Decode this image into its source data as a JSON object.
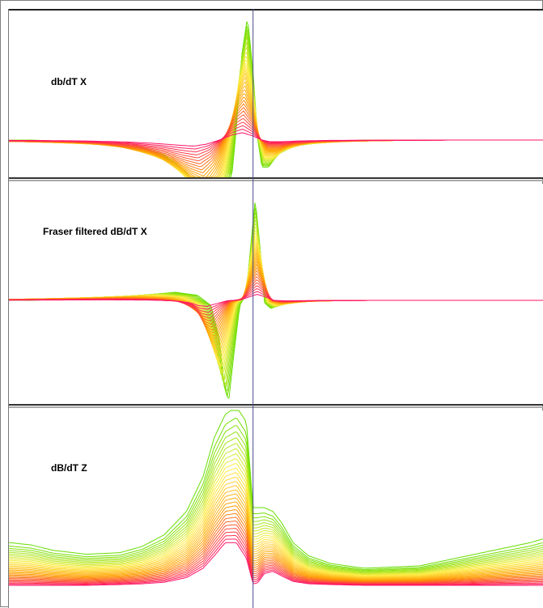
{
  "chart_data": [
    {
      "type": "line",
      "title": "db/dT X",
      "x": [
        -200,
        -150,
        -100,
        -80,
        -60,
        -45,
        -35,
        -28,
        -22,
        -16,
        -10,
        -5,
        0,
        4,
        8,
        14,
        22,
        35,
        60,
        100,
        150,
        220,
        260
      ],
      "base_series": [
        0,
        -0.02,
        -0.06,
        -0.12,
        -0.26,
        -0.48,
        -0.7,
        -0.82,
        -0.55,
        0.0,
        0.7,
        1.0,
        0.55,
        0.02,
        -0.22,
        -0.22,
        -0.12,
        -0.05,
        -0.02,
        0,
        0,
        0,
        0
      ],
      "curve_count": 30,
      "gradient": [
        "#66dd00",
        "#ffee44",
        "#ff9900",
        "#ff1166"
      ],
      "cursor_x": 0
    },
    {
      "type": "line",
      "title": "Fraser filtered dB/dT X",
      "x": [
        -200,
        -150,
        -100,
        -70,
        -50,
        -38,
        -30,
        -26,
        -22,
        -18,
        -12,
        -6,
        -2,
        2,
        6,
        10,
        16,
        24,
        35,
        60,
        100,
        150,
        220,
        260
      ],
      "base_series": [
        0,
        0.02,
        0.05,
        0.08,
        0.05,
        -0.05,
        -0.4,
        -0.85,
        -1.0,
        -0.6,
        -0.05,
        0.06,
        0.55,
        1.0,
        0.55,
        -0.02,
        -0.08,
        -0.05,
        -0.02,
        0,
        0,
        0,
        0,
        0
      ],
      "curve_count": 30,
      "gradient": [
        "#66dd00",
        "#ffee44",
        "#ff9900",
        "#ff1166"
      ],
      "cursor_x": 0
    },
    {
      "type": "line",
      "title": "dB/dT Z",
      "x": [
        -220,
        -200,
        -180,
        -150,
        -120,
        -100,
        -80,
        -60,
        -45,
        -35,
        -25,
        -15,
        -6,
        0,
        4,
        10,
        18,
        26,
        36,
        50,
        70,
        100,
        150,
        200,
        250,
        262
      ],
      "series_band": {
        "low": [
          0,
          0,
          0,
          0,
          0.01,
          0.02,
          0.04,
          0.1,
          0.22,
          0.38,
          0.55,
          0.55,
          0.35,
          0.02,
          0.03,
          0.15,
          0.18,
          0.12,
          0.05,
          0.02,
          0.01,
          0,
          0,
          0,
          0,
          0
        ],
        "high": [
          0.55,
          0.52,
          0.45,
          0.4,
          0.42,
          0.5,
          0.65,
          0.95,
          1.4,
          1.9,
          2.2,
          2.3,
          2.1,
          1.0,
          1.0,
          1.0,
          0.95,
          0.8,
          0.55,
          0.38,
          0.28,
          0.22,
          0.25,
          0.4,
          0.55,
          0.6
        ]
      },
      "curve_count": 30,
      "gradient": [
        "#66dd00",
        "#ffee44",
        "#ff9900",
        "#ff1166"
      ],
      "cursor_x": 0
    }
  ]
}
